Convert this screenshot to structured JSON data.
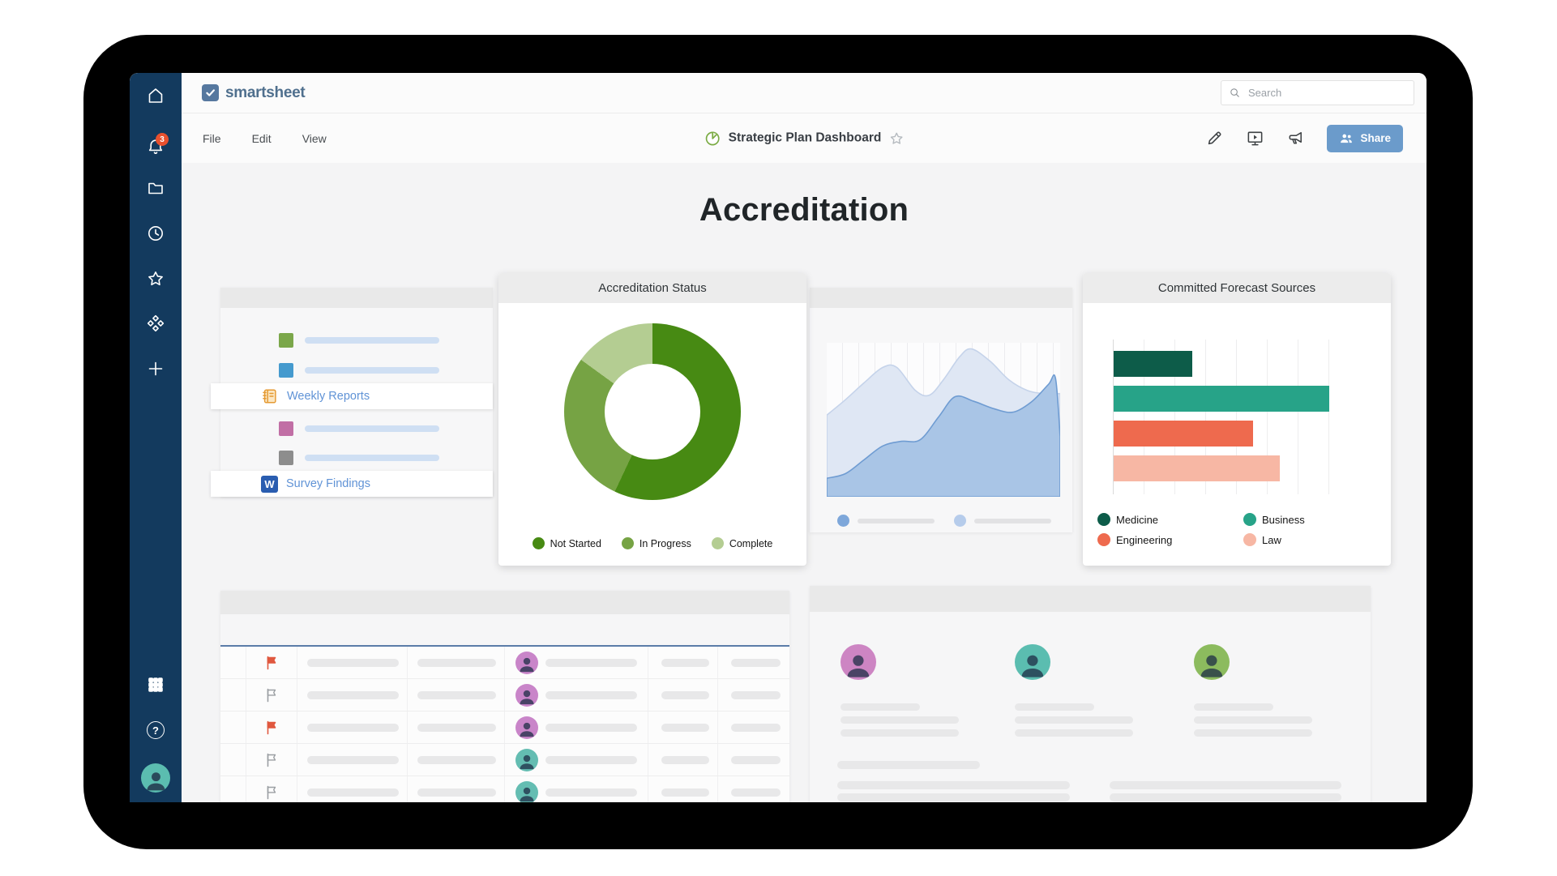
{
  "topbar": {
    "brand": "smartsheet",
    "search_placeholder": "Search"
  },
  "sidebar": {
    "notification_count": "3",
    "help_glyph": "?"
  },
  "menubar": {
    "menu_items": [
      "File",
      "Edit",
      "View"
    ],
    "doc_title": "Strategic Plan Dashboard",
    "share_label": "Share"
  },
  "page": {
    "heading": "Accreditation"
  },
  "shortcuts": {
    "rows": [
      {
        "kind": "swatch",
        "color": "#7ba74a"
      },
      {
        "kind": "swatch",
        "color": "#459ace"
      },
      {
        "kind": "link",
        "label": "Weekly Reports",
        "icon": "notebook-icon"
      },
      {
        "kind": "swatch",
        "color": "#c16fa5"
      },
      {
        "kind": "swatch",
        "color": "#8d8d8d"
      },
      {
        "kind": "link",
        "label": "Survey Findings",
        "icon": "word-icon",
        "icon_letter": "W"
      }
    ]
  },
  "chart_data": [
    {
      "type": "pie",
      "donut": true,
      "title": "Accreditation Status",
      "slices": [
        {
          "label": "Not Started",
          "value": 57,
          "color": "#478a13"
        },
        {
          "label": "In Progress",
          "value": 28,
          "color": "#76a344"
        },
        {
          "label": "Complete",
          "value": 15,
          "color": "#b4cd92"
        }
      ],
      "legend_position": "bottom"
    },
    {
      "type": "area",
      "title": "",
      "grid": "vertical",
      "x_range": [
        0,
        100
      ],
      "y_range": [
        0,
        100
      ],
      "series": [
        {
          "name": "background-series",
          "fill": "#dfe7f4",
          "line": "#c5d3ea",
          "points_pct": [
            [
              0,
              53
            ],
            [
              8,
              63
            ],
            [
              16,
              74
            ],
            [
              24,
              84
            ],
            [
              30,
              84
            ],
            [
              38,
              69
            ],
            [
              44,
              66
            ],
            [
              50,
              76
            ],
            [
              57,
              91
            ],
            [
              62,
              96
            ],
            [
              70,
              88
            ],
            [
              78,
              76
            ],
            [
              86,
              69
            ],
            [
              93,
              67
            ],
            [
              100,
              67
            ]
          ]
        },
        {
          "name": "foreground-series",
          "fill": "#a9c5e6",
          "line": "#6f9cd2",
          "points_pct": [
            [
              0,
              12
            ],
            [
              8,
              15
            ],
            [
              16,
              24
            ],
            [
              24,
              33
            ],
            [
              32,
              36
            ],
            [
              40,
              37
            ],
            [
              48,
              52
            ],
            [
              55,
              65
            ],
            [
              63,
              62
            ],
            [
              72,
              57
            ],
            [
              80,
              55
            ],
            [
              88,
              62
            ],
            [
              95,
              73
            ],
            [
              98,
              77
            ],
            [
              100,
              39
            ]
          ]
        }
      ],
      "legend": "skeleton-dots",
      "legend_dot_colors": [
        "#7ea7da",
        "#b6cceb"
      ]
    },
    {
      "type": "bar",
      "orientation": "horizontal",
      "title": "Committed Forecast Sources",
      "categories": [
        "Medicine",
        "Business",
        "Engineering",
        "Law"
      ],
      "values": [
        32,
        88,
        57,
        68
      ],
      "colors": [
        "#0d5c49",
        "#27a388",
        "#ee6a4e",
        "#f7b7a4"
      ],
      "xlim": [
        0,
        100
      ],
      "grid": "vertical",
      "legend_position": "bottom"
    }
  ],
  "table": {
    "rows": [
      {
        "flag": "red",
        "avatar_bg": "#c985c9"
      },
      {
        "flag": "gray",
        "avatar_bg": "#c985c9"
      },
      {
        "flag": "red",
        "avatar_bg": "#c985c9"
      },
      {
        "flag": "gray",
        "avatar_bg": "#64bdb2"
      },
      {
        "flag": "gray",
        "avatar_bg": "#64bdb2"
      }
    ]
  },
  "profiles": {
    "people": [
      {
        "avatar_bg": "#cd85c3"
      },
      {
        "avatar_bg": "#5bbdb0"
      },
      {
        "avatar_bg": "#8cbb5e"
      }
    ]
  }
}
